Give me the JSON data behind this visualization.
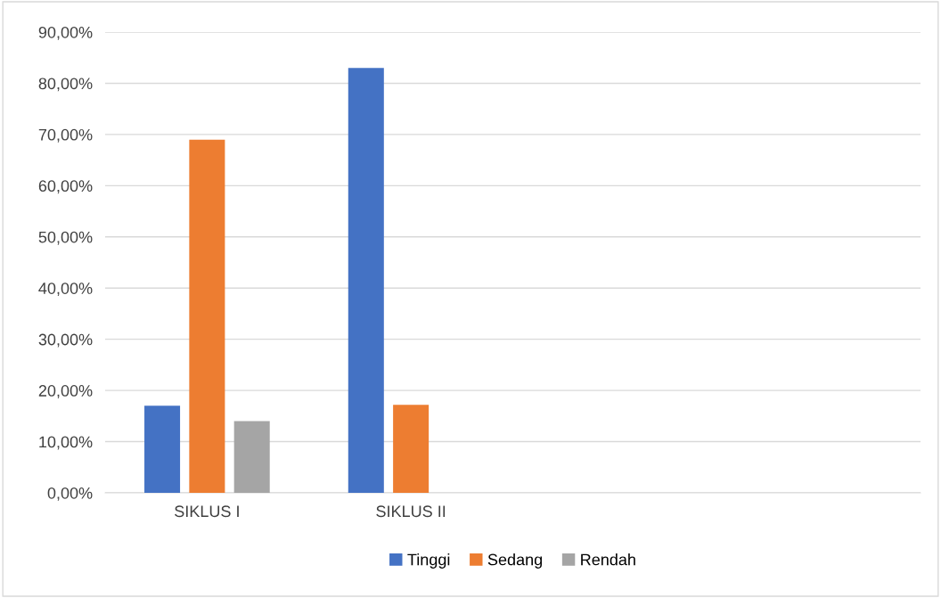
{
  "chart_data": {
    "type": "bar",
    "categories": [
      "SIKLUS I",
      "SIKLUS II",
      null,
      null
    ],
    "series": [
      {
        "name": "Tinggi",
        "color": "#4472c4",
        "values": [
          17,
          83,
          null,
          null
        ]
      },
      {
        "name": "Sedang",
        "color": "#ed7d31",
        "values": [
          69,
          17.2,
          null,
          null
        ]
      },
      {
        "name": "Rendah",
        "color": "#a5a5a5",
        "values": [
          14,
          0,
          null,
          null
        ]
      }
    ],
    "ylim": [
      0,
      90
    ],
    "yticks": [
      {
        "value": 0,
        "label": "0,00%"
      },
      {
        "value": 10,
        "label": "10,00%"
      },
      {
        "value": 20,
        "label": "20,00%"
      },
      {
        "value": 30,
        "label": "30,00%"
      },
      {
        "value": 40,
        "label": "40,00%"
      },
      {
        "value": 50,
        "label": "50,00%"
      },
      {
        "value": 60,
        "label": "60,00%"
      },
      {
        "value": 70,
        "label": "70,00%"
      },
      {
        "value": 80,
        "label": "80,00%"
      },
      {
        "value": 90,
        "label": "90,00%"
      }
    ],
    "grid": "y",
    "legend": "bottom"
  }
}
